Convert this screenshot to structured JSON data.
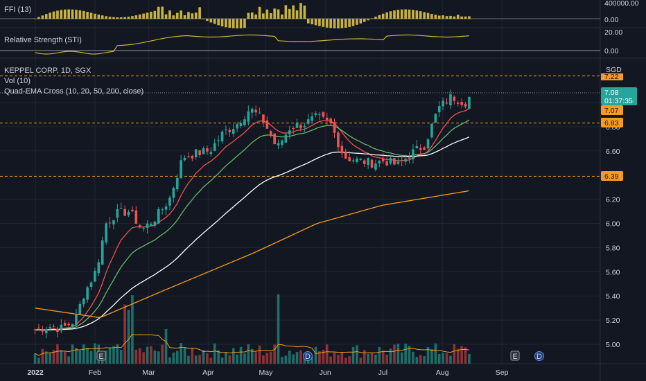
{
  "panels": {
    "ffi": {
      "label": "FFI (13)",
      "scale_top": "400000.00",
      "scale_bottom": "0.00"
    },
    "sti": {
      "label": "Relative Strength (STI)",
      "scale_top": "20.00",
      "scale_bottom": "0.00"
    },
    "main": {
      "symbol_line": "KEPPEL CORP, 1D, SGX",
      "vol_label": "Vol (10)",
      "ema_label": "Quad-EMA Cross (10, 20, 50, 200, close)",
      "currency": "SGD"
    }
  },
  "price_tags": {
    "current": {
      "value": "7.08",
      "timer": "01:37:35",
      "color": "#26a69a"
    },
    "ema10": {
      "value": "7.07",
      "color": "#f59c1a"
    },
    "level_683": {
      "value": "6.83",
      "color": "#f59c1a"
    },
    "level_639": {
      "value": "6.39",
      "color": "#f59c1a"
    },
    "top_partial": {
      "value": "7.22",
      "color": "#f59c1a"
    }
  },
  "event_markers": [
    "E",
    "D",
    "D",
    "E",
    "D"
  ],
  "colors": {
    "up": "#26a69a",
    "down": "#ef5350",
    "vol_up": "#1e6f69",
    "vol_down": "#8b3337",
    "ffi_bar": "#c9b53a",
    "sti_line": "#c9b53a",
    "ema10": "#ef5350",
    "ema20": "#66bb6a",
    "ema50": "#ffffff",
    "ema200": "#f59c1a",
    "vol_ma": "#f59c1a",
    "dashed_level": "#f59c1a"
  },
  "chart_data": {
    "type": "candlestick",
    "title": "KEPPEL CORP, 1D, SGX",
    "currency": "SGD",
    "y_range": [
      4.87,
      7.35
    ],
    "y_ticks": [
      "5.00",
      "5.20",
      "5.40",
      "5.60",
      "5.80",
      "6.00",
      "6.20",
      "6.40",
      "6.60",
      "6.80",
      "7.00"
    ],
    "x_ticks": [
      "2022",
      "Feb",
      "Mar",
      "Apr",
      "May",
      "Jun",
      "Jul",
      "Aug",
      "Sep"
    ],
    "horizontal_levels": [
      6.83,
      6.39,
      7.22
    ],
    "close_path": [
      [
        "2022-01-03",
        5.12
      ],
      [
        "2022-01-10",
        5.15
      ],
      [
        "2022-01-17",
        5.13
      ],
      [
        "2022-01-24",
        5.2
      ],
      [
        "2022-01-28",
        5.4
      ],
      [
        "2022-02-04",
        5.62
      ],
      [
        "2022-02-09",
        6.0
      ],
      [
        "2022-02-14",
        6.08
      ],
      [
        "2022-02-21",
        6.1
      ],
      [
        "2022-02-28",
        5.95
      ],
      [
        "2022-03-07",
        6.05
      ],
      [
        "2022-03-14",
        6.2
      ],
      [
        "2022-03-21",
        6.55
      ],
      [
        "2022-03-28",
        6.58
      ],
      [
        "2022-04-04",
        6.6
      ],
      [
        "2022-04-11",
        6.75
      ],
      [
        "2022-04-18",
        6.82
      ],
      [
        "2022-04-25",
        6.95
      ],
      [
        "2022-05-02",
        6.85
      ],
      [
        "2022-05-09",
        6.62
      ],
      [
        "2022-05-16",
        6.8
      ],
      [
        "2022-05-23",
        6.82
      ],
      [
        "2022-05-30",
        6.88
      ],
      [
        "2022-06-06",
        6.82
      ],
      [
        "2022-06-13",
        6.55
      ],
      [
        "2022-06-20",
        6.52
      ],
      [
        "2022-06-27",
        6.5
      ],
      [
        "2022-07-04",
        6.52
      ],
      [
        "2022-07-11",
        6.48
      ],
      [
        "2022-07-18",
        6.58
      ],
      [
        "2022-07-25",
        6.65
      ],
      [
        "2022-08-01",
        6.95
      ],
      [
        "2022-08-08",
        7.05
      ],
      [
        "2022-08-15",
        7.0
      ],
      [
        "2022-08-19",
        7.08
      ]
    ],
    "ema200_path": [
      [
        5.3,
        0
      ],
      [
        5.22,
        0.15
      ],
      [
        5.45,
        0.3
      ],
      [
        5.75,
        0.5
      ],
      [
        6.0,
        0.65
      ],
      [
        6.15,
        0.8
      ],
      [
        6.27,
        1.0
      ]
    ],
    "volume_ma_label": "Vol (10)"
  }
}
